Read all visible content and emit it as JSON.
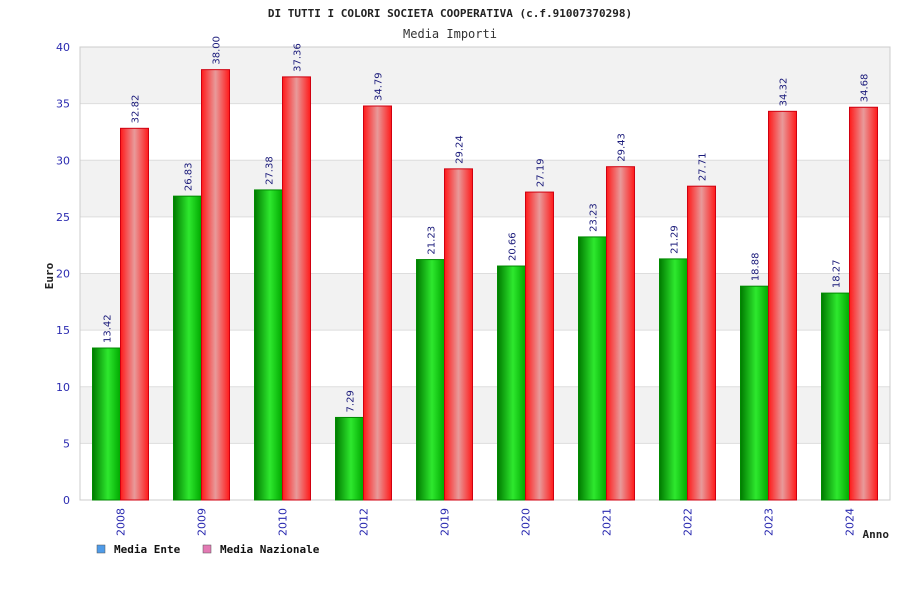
{
  "chart_data": {
    "type": "bar",
    "title": "DI TUTTI I COLORI SOCIETA COOPERATIVA (c.f.91007370298)",
    "subtitle": "Media Importi",
    "xlabel": "Anno",
    "ylabel": "Euro",
    "ylim": [
      0,
      40
    ],
    "yticks": [
      "0",
      "5",
      "10",
      "15",
      "20",
      "25",
      "30",
      "35",
      "40"
    ],
    "grid": true,
    "legend_position": "bottom-left",
    "categories": [
      "2008",
      "2009",
      "2010",
      "2012",
      "2019",
      "2020",
      "2021",
      "2022",
      "2023",
      "2024"
    ],
    "series": [
      {
        "name": "Media Ente",
        "color": "#00b000",
        "legend_color": "#4f9be8",
        "values": [
          13.42,
          26.83,
          27.38,
          7.29,
          21.23,
          20.66,
          23.23,
          21.29,
          18.88,
          18.27
        ],
        "labels": [
          "13.42",
          "26.83",
          "27.38",
          "7.29",
          "21.23",
          "20.66",
          "23.23",
          "21.29",
          "18.88",
          "18.27"
        ]
      },
      {
        "name": "Media Nazionale",
        "color": "#e8141e",
        "legend_color": "#e37ab4",
        "values": [
          32.82,
          38.0,
          37.36,
          34.79,
          29.24,
          27.19,
          29.43,
          27.71,
          34.32,
          34.68
        ],
        "labels": [
          "32.82",
          "38.00",
          "37.36",
          "34.79",
          "29.24",
          "27.19",
          "29.43",
          "27.71",
          "34.32",
          "34.68"
        ]
      }
    ]
  }
}
